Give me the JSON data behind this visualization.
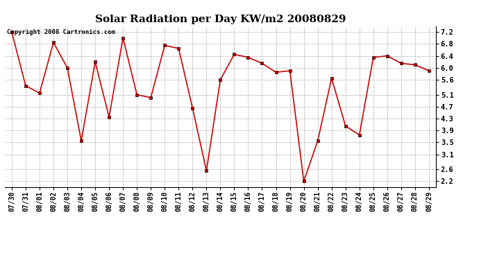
{
  "title": "Solar Radiation per Day KW/m2 20080829",
  "copyright_text": "Copyright 2008 Cartronics.com",
  "dates": [
    "07/30",
    "07/31",
    "08/01",
    "08/02",
    "08/03",
    "08/04",
    "08/05",
    "08/06",
    "08/07",
    "08/08",
    "08/09",
    "08/10",
    "08/11",
    "08/12",
    "08/13",
    "08/14",
    "08/15",
    "08/16",
    "08/17",
    "08/18",
    "08/19",
    "08/20",
    "08/21",
    "08/22",
    "08/23",
    "08/24",
    "08/25",
    "08/26",
    "08/27",
    "08/28",
    "08/29"
  ],
  "values": [
    7.2,
    5.4,
    5.15,
    6.85,
    6.0,
    3.55,
    6.2,
    4.35,
    7.0,
    5.1,
    5.0,
    6.75,
    6.65,
    4.65,
    2.55,
    5.6,
    6.45,
    6.35,
    6.15,
    5.85,
    5.9,
    2.2,
    3.55,
    5.65,
    4.05,
    3.75,
    6.35,
    6.4,
    6.15,
    6.1,
    5.9
  ],
  "line_color": "#cc0000",
  "marker": "s",
  "marker_size": 3,
  "bg_color": "#ffffff",
  "grid_color": "#aaaaaa",
  "ylim": [
    2.0,
    7.4
  ],
  "yticks": [
    2.2,
    2.6,
    3.1,
    3.5,
    3.9,
    4.3,
    4.7,
    5.1,
    5.6,
    6.0,
    6.4,
    6.8,
    7.2
  ],
  "title_fontsize": 11,
  "tick_fontsize": 7,
  "ytick_fontsize": 7.5
}
